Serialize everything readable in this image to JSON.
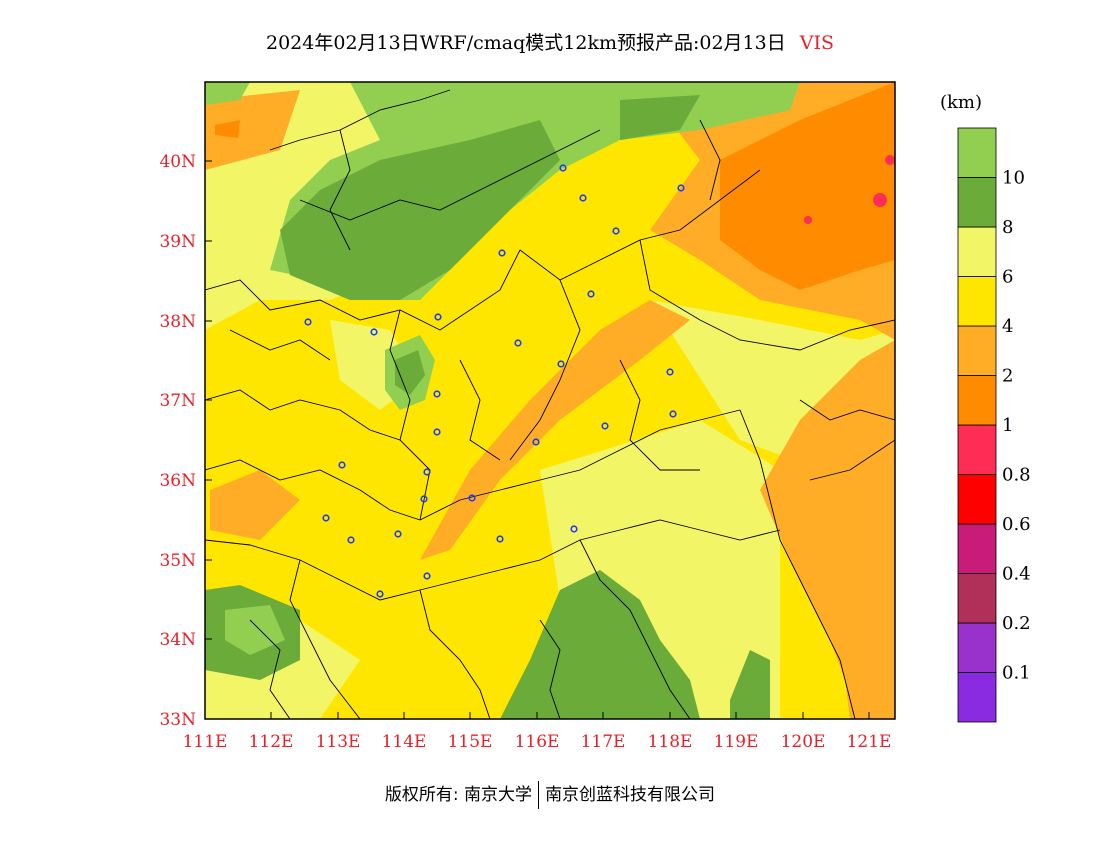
{
  "title": {
    "text": "2024年02月13日WRF/cmaq模式12km预报产品:02月13日",
    "variable": "VIS"
  },
  "colorbar": {
    "unit": "(km)",
    "colors": [
      "#8a2be2",
      "#9932cc",
      "#b0305a",
      "#c81c78",
      "#ff0000",
      "#ff2d55",
      "#ff8c00",
      "#ffad26",
      "#ffe600",
      "#f2f566",
      "#6aab3a",
      "#92cf50"
    ],
    "labels": [
      "0.1",
      "0.2",
      "0.4",
      "0.6",
      "0.8",
      "1",
      "2",
      "4",
      "6",
      "8",
      "10"
    ]
  },
  "axes": {
    "lon_labels": [
      "111E",
      "112E",
      "113E",
      "114E",
      "115E",
      "116E",
      "117E",
      "118E",
      "119E",
      "120E",
      "121E"
    ],
    "lat_labels": [
      "33N",
      "34N",
      "35N",
      "36N",
      "37N",
      "38N",
      "39N",
      "40N"
    ]
  },
  "footer": {
    "left": "版权所有: 南京大学",
    "right": "南京创蓝科技有限公司"
  }
}
